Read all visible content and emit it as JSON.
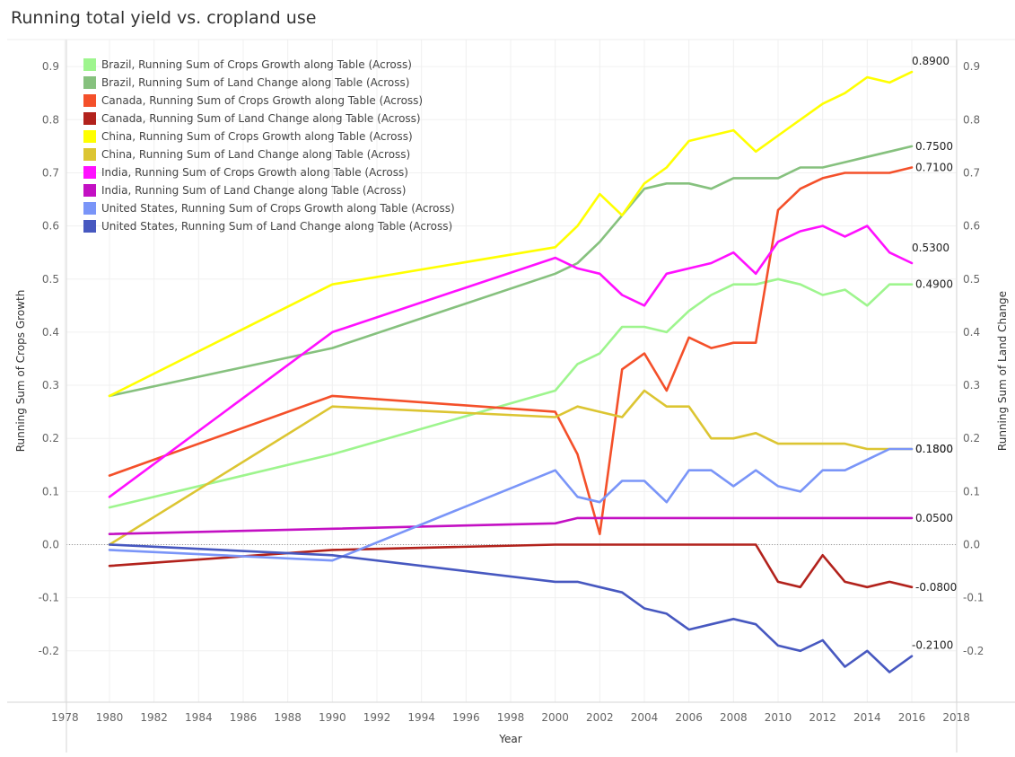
{
  "chart_data": {
    "type": "line",
    "title": "Running total yield vs. cropland use",
    "xlabel": "Year",
    "ylabel_left": "Running Sum of Crops Growth",
    "ylabel_right": "Running Sum of Land Change",
    "xlim": [
      1977,
      2019
    ],
    "ylim": [
      -0.3,
      0.95
    ],
    "xticks": [
      1978,
      1980,
      1982,
      1984,
      1986,
      1988,
      1990,
      1992,
      1994,
      1996,
      1998,
      2000,
      2002,
      2004,
      2006,
      2008,
      2010,
      2012,
      2014,
      2016,
      2018
    ],
    "yticks": [
      -0.2,
      -0.1,
      0.0,
      0.1,
      0.2,
      0.3,
      0.4,
      0.5,
      0.6,
      0.7,
      0.8,
      0.9
    ],
    "ytick_labels": [
      "-0.2",
      "-0.1",
      "0.0",
      "0.1",
      "0.2",
      "0.3",
      "0.4",
      "0.5",
      "0.6",
      "0.7",
      "0.8",
      "0.9"
    ],
    "legend_position": "top-left",
    "x": [
      1980,
      1990,
      2000,
      2001,
      2002,
      2003,
      2004,
      2005,
      2006,
      2007,
      2008,
      2009,
      2010,
      2011,
      2012,
      2013,
      2014,
      2015,
      2016
    ],
    "series": [
      {
        "name": "Brazil, Running Sum of Crops Growth along Table (Across)",
        "color": "#9ef58e",
        "values": [
          0.07,
          0.17,
          0.29,
          0.34,
          0.36,
          0.41,
          0.41,
          0.4,
          0.44,
          0.47,
          0.49,
          0.49,
          0.5,
          0.49,
          0.47,
          0.48,
          0.45,
          0.49,
          0.49
        ],
        "end_label": "0.4900"
      },
      {
        "name": "Brazil, Running Sum of Land Change along Table (Across)",
        "color": "#86c17e",
        "values": [
          0.28,
          0.37,
          0.51,
          0.53,
          0.57,
          0.62,
          0.67,
          0.68,
          0.68,
          0.67,
          0.69,
          0.69,
          0.69,
          0.71,
          0.71,
          0.72,
          0.73,
          0.74,
          0.75
        ],
        "end_label": "0.7500"
      },
      {
        "name": "Canada, Running Sum of Crops Growth along Table (Across)",
        "color": "#f4502a",
        "values": [
          0.13,
          0.28,
          0.25,
          0.17,
          0.02,
          0.33,
          0.36,
          0.29,
          0.39,
          0.37,
          0.38,
          0.38,
          0.63,
          0.67,
          0.69,
          0.7,
          0.7,
          0.7,
          0.71
        ],
        "end_label": "0.7100"
      },
      {
        "name": "Canada, Running Sum of Land Change along Table (Across)",
        "color": "#b2221c",
        "values": [
          -0.04,
          -0.01,
          0.0,
          0.0,
          0.0,
          0.0,
          0.0,
          0.0,
          0.0,
          0.0,
          0.0,
          0.0,
          -0.07,
          -0.08,
          -0.02,
          -0.07,
          -0.08,
          -0.07,
          -0.08
        ],
        "end_label": "-0.0800"
      },
      {
        "name": "China, Running Sum of Crops Growth along Table (Across)",
        "color": "#ffff00",
        "values": [
          0.28,
          0.49,
          0.56,
          0.6,
          0.66,
          0.62,
          0.68,
          0.71,
          0.76,
          0.77,
          0.78,
          0.74,
          0.77,
          0.8,
          0.83,
          0.85,
          0.88,
          0.87,
          0.89
        ],
        "end_label": "0.8900"
      },
      {
        "name": "China, Running Sum of Land Change along Table (Across)",
        "color": "#dcc532",
        "values": [
          0.0,
          0.26,
          0.24,
          0.26,
          0.25,
          0.24,
          0.29,
          0.26,
          0.26,
          0.2,
          0.2,
          0.21,
          0.19,
          0.19,
          0.19,
          0.19,
          0.18,
          0.18,
          0.18
        ],
        "end_label": "0.1800"
      },
      {
        "name": "India, Running Sum of Crops Growth along Table (Across)",
        "color": "#ff10ff",
        "values": [
          0.09,
          0.4,
          0.54,
          0.52,
          0.51,
          0.47,
          0.45,
          0.51,
          0.52,
          0.53,
          0.55,
          0.51,
          0.57,
          0.59,
          0.6,
          0.58,
          0.6,
          0.55,
          0.53
        ],
        "end_label": "0.5300"
      },
      {
        "name": "India, Running Sum of Land Change along Table (Across)",
        "color": "#c310c3",
        "values": [
          0.02,
          0.03,
          0.04,
          0.05,
          0.05,
          0.05,
          0.05,
          0.05,
          0.05,
          0.05,
          0.05,
          0.05,
          0.05,
          0.05,
          0.05,
          0.05,
          0.05,
          0.05,
          0.05
        ],
        "end_label": "0.0500"
      },
      {
        "name": "United States, Running Sum of Crops Growth along Table (Across)",
        "color": "#7a95f8",
        "values": [
          -0.01,
          -0.03,
          0.14,
          0.09,
          0.08,
          0.12,
          0.12,
          0.08,
          0.14,
          0.14,
          0.11,
          0.14,
          0.11,
          0.1,
          0.14,
          0.14,
          0.16,
          0.18,
          0.18
        ],
        "end_label": "0.1800"
      },
      {
        "name": "United States, Running Sum of Land Change along Table (Across)",
        "color": "#4758c0",
        "values": [
          0.0,
          -0.02,
          -0.07,
          -0.07,
          -0.08,
          -0.09,
          -0.12,
          -0.13,
          -0.16,
          -0.15,
          -0.14,
          -0.15,
          -0.19,
          -0.2,
          -0.18,
          -0.23,
          -0.2,
          -0.24,
          -0.21
        ],
        "end_label": "-0.2100"
      }
    ]
  }
}
